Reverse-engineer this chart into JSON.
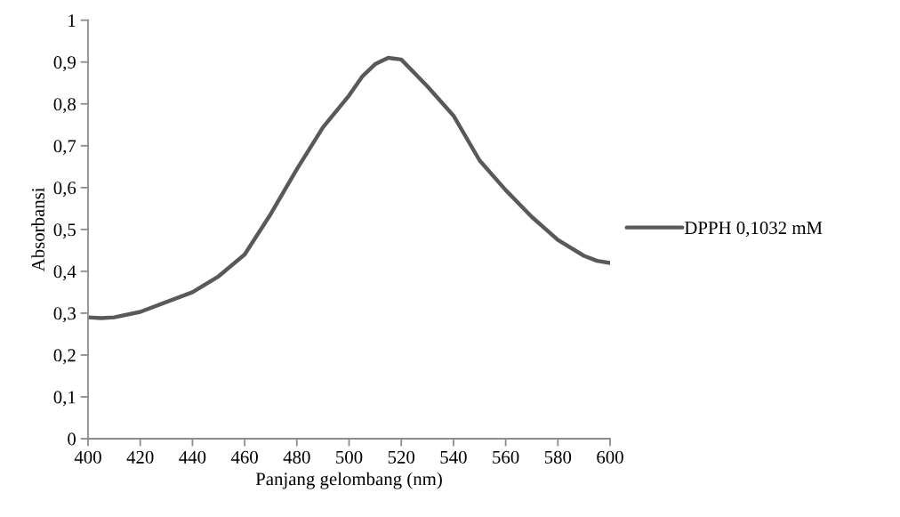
{
  "chart_data": {
    "type": "line",
    "xlabel": "Panjang gelombang (nm)",
    "ylabel": "Absorbansi",
    "x": [
      400,
      405,
      410,
      420,
      440,
      450,
      460,
      470,
      480,
      490,
      500,
      505,
      510,
      515,
      520,
      530,
      540,
      550,
      560,
      570,
      580,
      590,
      595,
      600
    ],
    "series": [
      {
        "name": "DPPH 0,1032 mM",
        "color": "#595959",
        "values": [
          0.29,
          0.288,
          0.29,
          0.303,
          0.35,
          0.388,
          0.44,
          0.537,
          0.644,
          0.744,
          0.82,
          0.865,
          0.895,
          0.91,
          0.906,
          0.842,
          0.772,
          0.665,
          0.594,
          0.53,
          0.475,
          0.437,
          0.425,
          0.42
        ]
      }
    ],
    "xlim": [
      400,
      600
    ],
    "xticks": [
      400,
      420,
      440,
      460,
      480,
      500,
      520,
      540,
      560,
      580,
      600
    ],
    "ylim": [
      0,
      1
    ],
    "yticks": [
      {
        "value": 0,
        "label": "0"
      },
      {
        "value": 0.1,
        "label": "0,1"
      },
      {
        "value": 0.2,
        "label": "0,2"
      },
      {
        "value": 0.3,
        "label": "0,3"
      },
      {
        "value": 0.4,
        "label": "0,4"
      },
      {
        "value": 0.5,
        "label": "0,5"
      },
      {
        "value": 0.6,
        "label": "0,6"
      },
      {
        "value": 0.7,
        "label": "0,7"
      },
      {
        "value": 0.8,
        "label": "0,8"
      },
      {
        "value": 0.9,
        "label": "0,9"
      },
      {
        "value": 1,
        "label": "1"
      }
    ],
    "grid": false,
    "legend": "right",
    "marker": "none",
    "line_style": "solid"
  }
}
